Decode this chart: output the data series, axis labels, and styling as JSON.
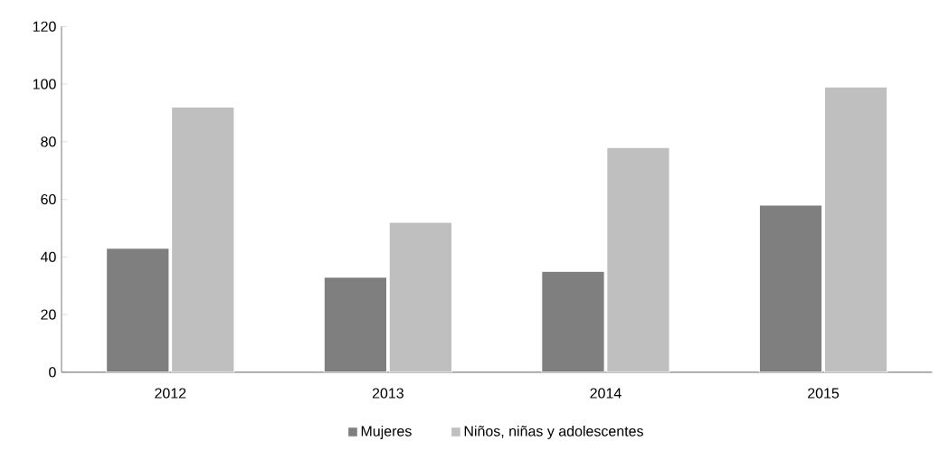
{
  "chart_data": {
    "type": "bar",
    "categories": [
      "2012",
      "2013",
      "2014",
      "2015"
    ],
    "series": [
      {
        "name": "Mujeres",
        "color": "#7f7f7f",
        "values": [
          43,
          33,
          35,
          58
        ]
      },
      {
        "name": "Niños, niñas y adolescentes",
        "color": "#bfbfbf",
        "values": [
          92,
          52,
          78,
          99
        ]
      }
    ],
    "ylim": [
      0,
      120
    ],
    "yticks": [
      0,
      20,
      40,
      60,
      80,
      100,
      120
    ],
    "grid": false,
    "legend": "bottom"
  }
}
